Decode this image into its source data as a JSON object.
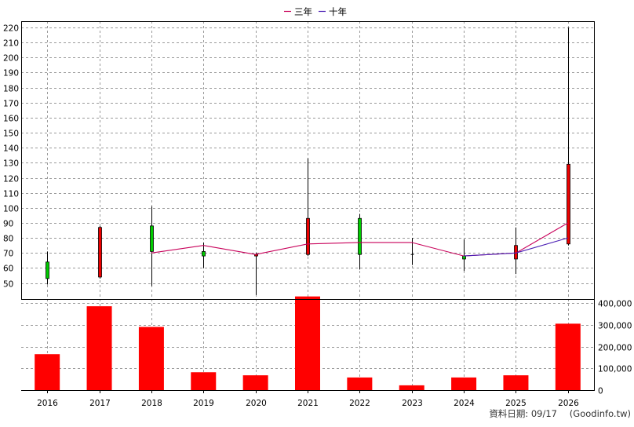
{
  "chart_data": {
    "type": "candlestick-with-volume",
    "legend": [
      {
        "label": "三年",
        "color": "#c8005a"
      },
      {
        "label": "十年",
        "color": "#4b1fb4"
      }
    ],
    "years": [
      "2016",
      "2017",
      "2018",
      "2019",
      "2020",
      "2021",
      "2022",
      "2023",
      "2024",
      "2025",
      "2026"
    ],
    "price_axis": {
      "min": 50,
      "max": 220,
      "step": 10,
      "ticks": [
        "220",
        "210",
        "200",
        "190",
        "180",
        "170",
        "160",
        "150",
        "140",
        "130",
        "120",
        "110",
        "100",
        "90",
        "80",
        "70",
        "60",
        "50"
      ]
    },
    "candles": [
      {
        "year": "2016",
        "open": 53,
        "close": 64,
        "high": 71,
        "low": 49,
        "color": "#00cc00"
      },
      {
        "year": "2017",
        "open": 87,
        "close": 54,
        "high": 88,
        "low": 53,
        "color": "#ee0000"
      },
      {
        "year": "2018",
        "open": 71,
        "close": 88,
        "high": 101,
        "low": 48,
        "color": "#00cc00"
      },
      {
        "year": "2019",
        "open": 68,
        "close": 71,
        "high": 77,
        "low": 60,
        "color": "#00cc00"
      },
      {
        "year": "2020",
        "open": 69,
        "close": 68,
        "high": 70,
        "low": 42,
        "color": "#ee0000"
      },
      {
        "year": "2021",
        "open": 93,
        "close": 69,
        "high": 133,
        "low": 68,
        "color": "#ee0000"
      },
      {
        "year": "2022",
        "open": 69,
        "close": 93,
        "high": 96,
        "low": 59,
        "color": "#00cc00"
      },
      {
        "year": "2023",
        "open": 69,
        "close": 69,
        "high": 80,
        "low": 62,
        "color": "#000000"
      },
      {
        "year": "2024",
        "open": 66,
        "close": 68,
        "high": 79,
        "low": 58,
        "color": "#00cc00"
      },
      {
        "year": "2025",
        "open": 75,
        "close": 66,
        "high": 87,
        "low": 56,
        "color": "#ee0000"
      },
      {
        "year": "2026",
        "open": 129,
        "close": 76,
        "high": 220,
        "low": 75,
        "color": "#ee0000"
      }
    ],
    "series": [
      {
        "name": "三年",
        "color": "#c8005a",
        "x": [
          "2018",
          "2019",
          "2020",
          "2021",
          "2022",
          "2023",
          "2024",
          "2025",
          "2026"
        ],
        "values": [
          70,
          75,
          69,
          76,
          77,
          77,
          68,
          70,
          90
        ]
      },
      {
        "name": "十年",
        "color": "#4b1fb4",
        "x": [
          "2024",
          "2025",
          "2026"
        ],
        "values": [
          68,
          70,
          80
        ]
      }
    ],
    "volume_axis": {
      "min": 0,
      "max": 400000,
      "ticks": [
        "400,000",
        "300,000",
        "200,000",
        "100,000",
        "0"
      ]
    },
    "volume": [
      165000,
      385000,
      290000,
      82000,
      68000,
      430000,
      58000,
      22000,
      58000,
      68000,
      305000
    ],
    "volume_color": "#ff0000",
    "grid": true
  },
  "footer": {
    "date_label": "資料日期: 09/17",
    "source": "(Goodinfo.tw)"
  }
}
